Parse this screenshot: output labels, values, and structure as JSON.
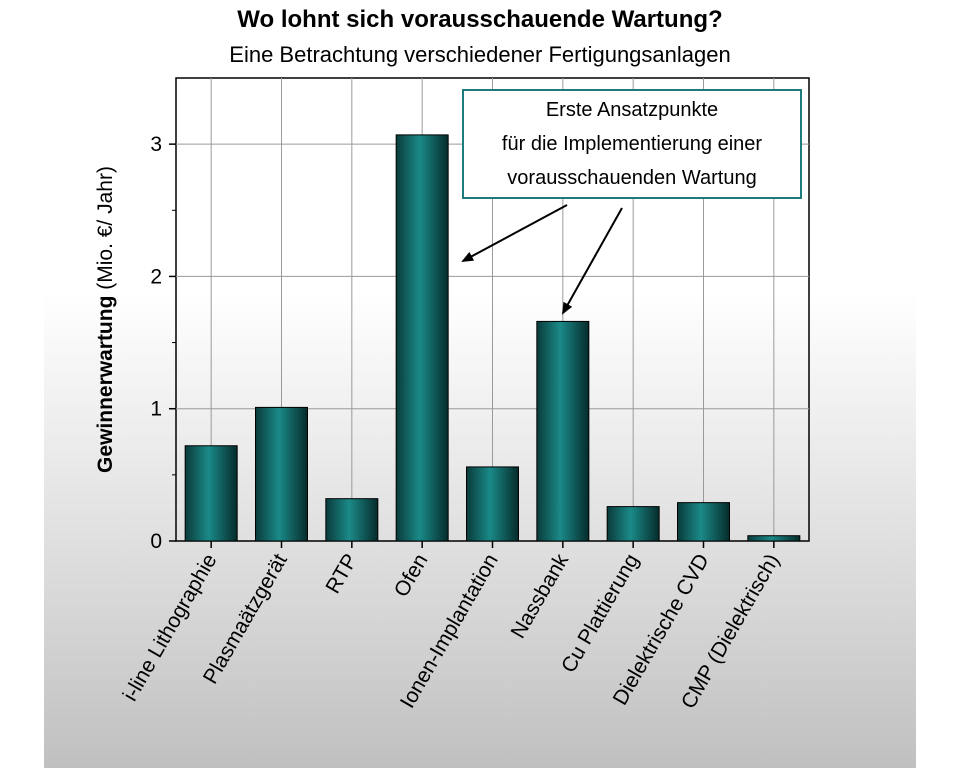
{
  "title": "Wo lohnt sich vorausschauende Wartung?",
  "subtitle": "Eine Betrachtung verschiedener Fertigungsanlagen",
  "annotation": {
    "lines": [
      "Erste Ansatzpunkte",
      "für die Implementierung einer",
      "vorausschauenden Wartung"
    ],
    "border_color": "#1e7b7b"
  },
  "chart_data": {
    "type": "bar",
    "title": "Wo lohnt sich vorausschauende Wartung?",
    "subtitle": "Eine Betrachtung verschiedener Fertigungsanlagen",
    "xlabel": "",
    "ylabel_bold": "Gewinnerwartung",
    "ylabel_rest": " (Mio. €/ Jahr)",
    "categories": [
      "i-line Lithographie",
      "Plasmaätzgerät",
      "RTP",
      "Ofen",
      "Ionen-Implantation",
      "Nassbank",
      "Cu Plattierung",
      "Dielektrische CVD",
      "CMP (Dielektrisch)"
    ],
    "values": [
      0.72,
      1.01,
      0.32,
      3.07,
      0.56,
      1.66,
      0.26,
      0.29,
      0.04
    ],
    "ylim": [
      0,
      3.5
    ],
    "yticks": [
      "0",
      "1",
      "2",
      "3"
    ],
    "grid": true,
    "bar_color": "#137070",
    "annotated_categories": [
      "Ofen",
      "Nassbank"
    ]
  }
}
